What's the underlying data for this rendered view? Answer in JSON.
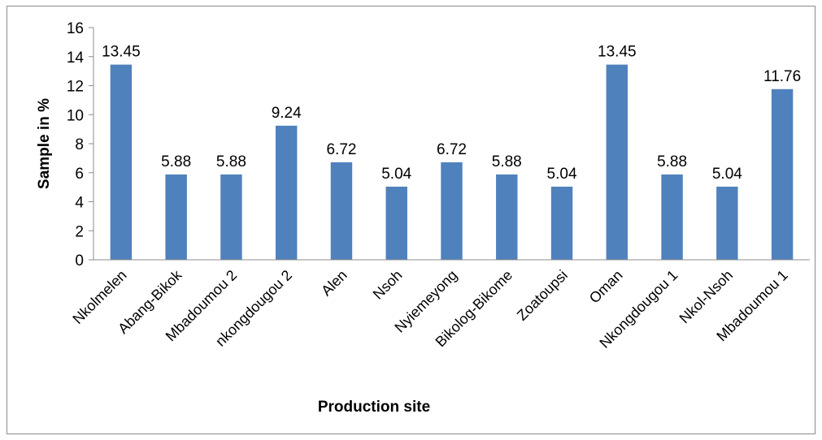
{
  "chart_data": {
    "type": "bar",
    "categories": [
      "Nkolmelen",
      "Abang-Bikok",
      "Mbadoumou 2",
      "nkongdougou 2",
      "Alen",
      "Nsoh",
      "Nyiemeyong",
      "Bikolog-Bikome",
      "Zoatoupsi",
      "Oman",
      "Nkongdougou 1",
      "Nkol-Nsoh",
      "Mbadoumou 1"
    ],
    "values": [
      13.45,
      5.88,
      5.88,
      9.24,
      6.72,
      5.04,
      6.72,
      5.88,
      5.04,
      13.45,
      5.88,
      5.04,
      11.76
    ],
    "data_labels": [
      "13.45",
      "5.88",
      "5.88",
      "9.24",
      "6.72",
      "5.04",
      "6.72",
      "5.88",
      "5.04",
      "13.45",
      "5.88",
      "5.04",
      "11.76"
    ],
    "yticks": [
      "0",
      "2",
      "4",
      "6",
      "8",
      "10",
      "12",
      "14",
      "16"
    ],
    "xlabel": "Production site",
    "ylabel": "Sample in %",
    "ylim": [
      0,
      16
    ],
    "grid": false,
    "bar_color": "#4f81bd"
  }
}
